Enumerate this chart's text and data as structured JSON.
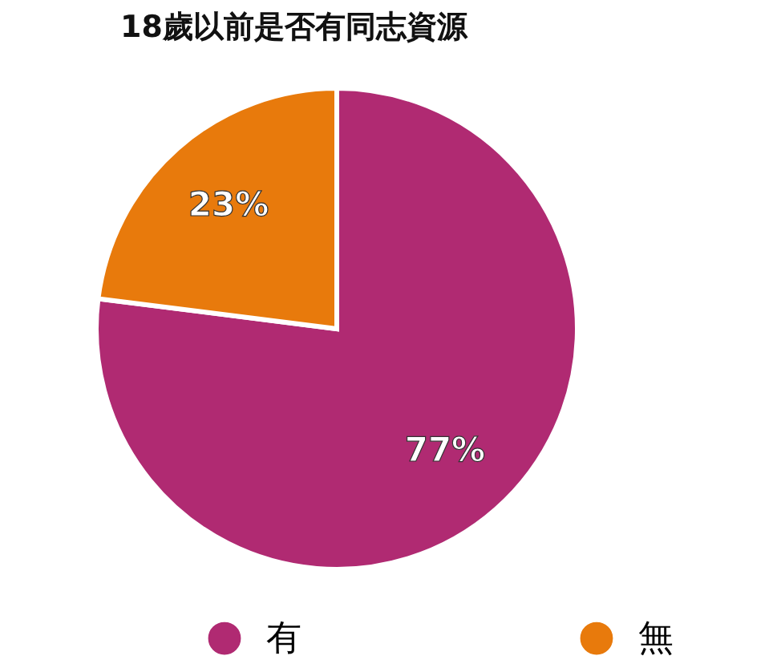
{
  "chart_data": {
    "type": "pie",
    "title": "18歲以前是否有同志資源",
    "categories": [
      "有",
      "無"
    ],
    "values": [
      77,
      23
    ],
    "colors": [
      "#b02a72",
      "#e87a0c"
    ],
    "value_labels": [
      "77%",
      "23%"
    ],
    "legend": "bottom"
  }
}
